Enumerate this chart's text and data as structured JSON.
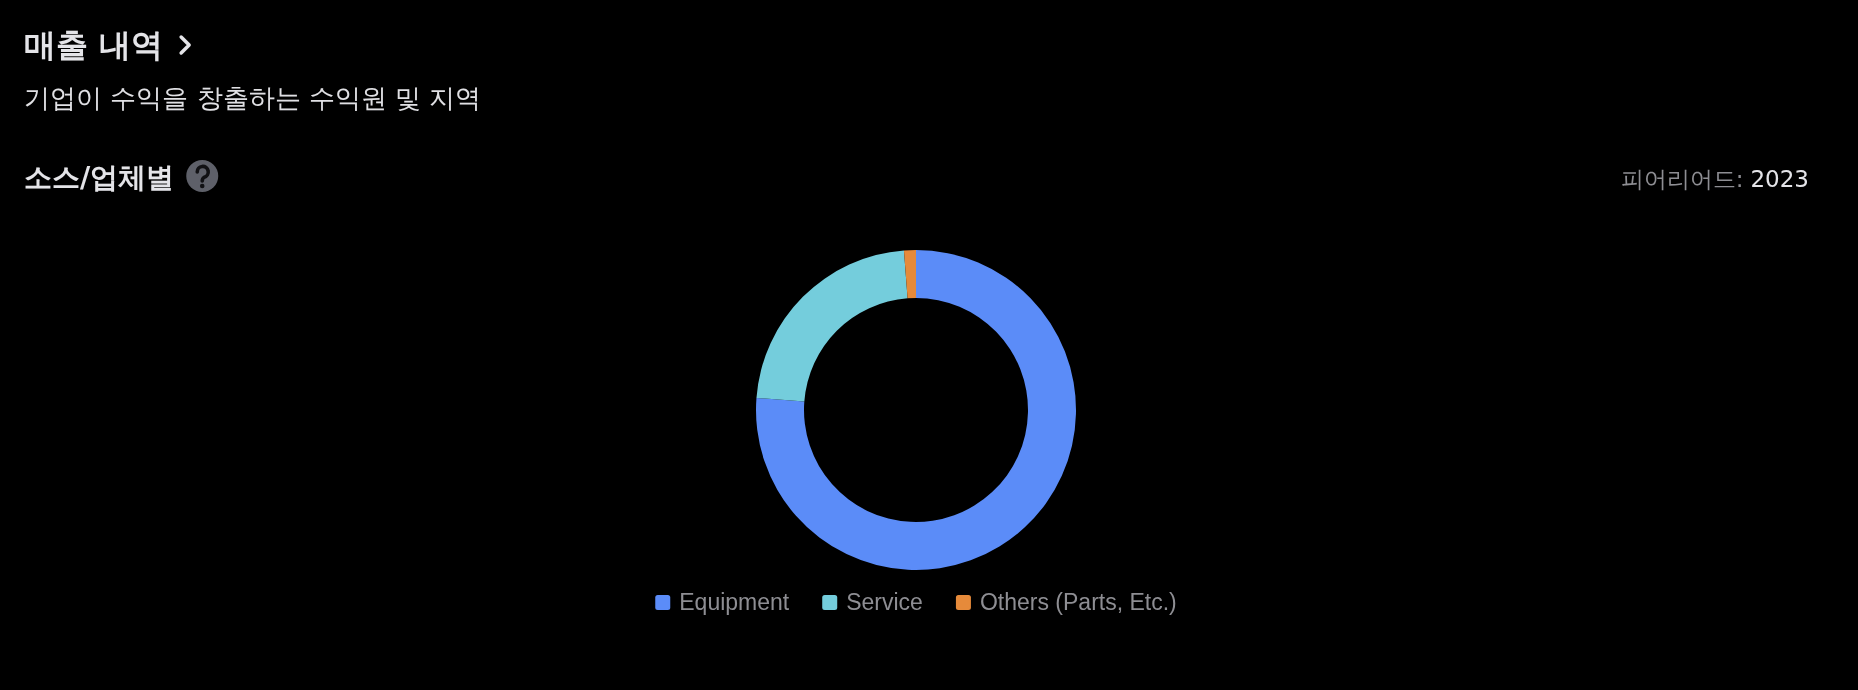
{
  "chart_data": {
    "type": "donut",
    "title": "매출 내역",
    "subtitle": "기업이 수익을 창출하는 수익원 및 지역",
    "annotations": [
      "소스/업체별",
      "피어리어드:",
      "2023"
    ],
    "categories": [
      "Equipment",
      "Service",
      "Others (Parts, Etc.)"
    ],
    "values": [
      76.2,
      22.6,
      1.2
    ],
    "colors": [
      "#5b8cf8",
      "#74cddc",
      "#e68a3a"
    ],
    "legend": "bottom"
  }
}
